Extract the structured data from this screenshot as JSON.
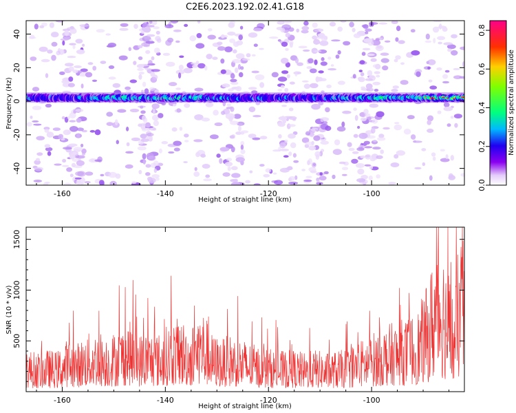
{
  "figure": {
    "title": "C2E6.2023.192.02.41.G18"
  },
  "chart_data": [
    {
      "type": "heatmap",
      "xlabel": "Height of straight line (km)",
      "ylabel": "Frequency (Hz)",
      "xlim": [
        -167,
        -82
      ],
      "ylim": [
        -50,
        48
      ],
      "x_ticks": [
        -160,
        -140,
        -120,
        -100
      ],
      "y_ticks": [
        -40,
        -20,
        0,
        20,
        40
      ],
      "y_tick_labels": [
        "-40",
        "-20",
        "0",
        "20",
        "40"
      ],
      "colorbar": {
        "label": "Normalized spectral amplitude",
        "range": [
          0.0,
          0.85
        ],
        "ticks": [
          0.0,
          0.2,
          0.4,
          0.6,
          0.8
        ],
        "tick_labels": [
          "0.0",
          "0.2",
          "0.4",
          "0.6",
          "0.8"
        ],
        "colormap": [
          "#ffffff",
          "#d8b8f8",
          "#8a00f0",
          "#2000f0",
          "#00e0ff",
          "#00ff60",
          "#b0ff00",
          "#ffb000",
          "#ff2000",
          "#ff0080"
        ]
      },
      "band": {
        "center_frequency_hz": 2,
        "segments": [
          {
            "x": -166,
            "amplitude": 0.3
          },
          {
            "x": -160,
            "amplitude": 0.25
          },
          {
            "x": -154,
            "amplitude": 0.4
          },
          {
            "x": -148,
            "amplitude": 0.45
          },
          {
            "x": -143,
            "amplitude": 0.35
          },
          {
            "x": -138,
            "amplitude": 0.55
          },
          {
            "x": -133,
            "amplitude": 0.42
          },
          {
            "x": -127,
            "amplitude": 0.38
          },
          {
            "x": -121,
            "amplitude": 0.3
          },
          {
            "x": -115,
            "amplitude": 0.28
          },
          {
            "x": -109,
            "amplitude": 0.35
          },
          {
            "x": -103,
            "amplitude": 0.4
          },
          {
            "x": -97,
            "amplitude": 0.5
          },
          {
            "x": -92,
            "amplitude": 0.48
          },
          {
            "x": -87,
            "amplitude": 0.85
          },
          {
            "x": -84,
            "amplitude": 0.7
          }
        ]
      }
    },
    {
      "type": "line",
      "xlabel": "Height of straight line (km)",
      "ylabel": "SNR (10 * v/v)",
      "xlim": [
        -167,
        -82
      ],
      "ylim": [
        0,
        1620
      ],
      "x_ticks": [
        -160,
        -140,
        -120,
        -100
      ],
      "y_ticks": [
        500,
        1000,
        1500
      ],
      "y_tick_labels": [
        "500",
        "1000",
        "1500"
      ],
      "line_color": "#ee3333",
      "series": [
        {
          "x": [
            -167,
            -165,
            -163,
            -161,
            -159,
            -157,
            -155,
            -153,
            -151,
            -149,
            -147,
            -145,
            -143,
            -141,
            -139,
            -137,
            -135,
            -133,
            -131,
            -129,
            -127,
            -125,
            -123,
            -121,
            -119,
            -117,
            -115,
            -113,
            -111,
            -109,
            -107,
            -105,
            -103,
            -101,
            -99,
            -97,
            -95,
            -93,
            -91,
            -89,
            -88,
            -87,
            -86,
            -85,
            -84,
            -83,
            -82
          ],
          "values": [
            250,
            220,
            240,
            230,
            300,
            280,
            330,
            350,
            320,
            360,
            400,
            330,
            350,
            330,
            400,
            420,
            360,
            500,
            330,
            300,
            330,
            300,
            270,
            250,
            240,
            230,
            240,
            220,
            240,
            220,
            230,
            240,
            280,
            310,
            350,
            380,
            400,
            420,
            470,
            620,
            780,
            1000,
            820,
            700,
            500,
            900,
            850
          ]
        }
      ]
    }
  ]
}
